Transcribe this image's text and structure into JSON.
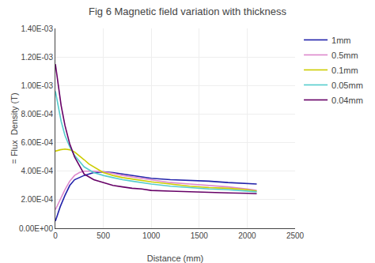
{
  "chart_data": {
    "type": "line",
    "title": "Fig 6 Magnetic field variation with thickness",
    "x_label": "Distance (mm)",
    "y_label": "= Flux  Density (T)",
    "xlim": [
      0,
      2500
    ],
    "ylim": [
      0,
      0.0014
    ],
    "xticks": [
      0,
      500,
      1000,
      1500,
      2000,
      2500
    ],
    "yticks": [
      {
        "value": 0.0,
        "label": "0.00E+00"
      },
      {
        "value": 0.0002,
        "label": "2.00E-04"
      },
      {
        "value": 0.0004,
        "label": "4.00E-04"
      },
      {
        "value": 0.0006,
        "label": "6.00E-04"
      },
      {
        "value": 0.0008,
        "label": "8.00E-04"
      },
      {
        "value": 0.001,
        "label": "1.00E-03"
      },
      {
        "value": 0.0012,
        "label": "1.20E-03"
      },
      {
        "value": 0.0014,
        "label": "1.40E-03"
      }
    ],
    "grid": true,
    "legend": "right",
    "series": [
      {
        "name": "1mm",
        "color": "#2222aa",
        "x": [
          0,
          50,
          100,
          150,
          200,
          300,
          400,
          500,
          600,
          700,
          800,
          900,
          1000,
          1200,
          1400,
          1600,
          1800,
          2000,
          2100
        ],
        "values": [
          5e-05,
          0.00015,
          0.00023,
          0.0003,
          0.00034,
          0.00037,
          0.00039,
          0.000395,
          0.00039,
          0.00038,
          0.00037,
          0.00036,
          0.00035,
          0.00034,
          0.000335,
          0.00033,
          0.00032,
          0.000315,
          0.00031
        ]
      },
      {
        "name": "0.5mm",
        "color": "#dd88cc",
        "x": [
          0,
          50,
          100,
          150,
          200,
          250,
          300,
          400,
          500,
          600,
          700,
          800,
          900,
          1000,
          1200,
          1400,
          1600,
          1800,
          2000,
          2100
        ],
        "values": [
          0.00013,
          0.0002,
          0.00027,
          0.00033,
          0.00037,
          0.00039,
          0.0004,
          0.0004,
          0.000395,
          0.000385,
          0.00037,
          0.00036,
          0.00035,
          0.00034,
          0.00032,
          0.00031,
          0.0003,
          0.00029,
          0.000275,
          0.000265
        ]
      },
      {
        "name": "0.1mm",
        "color": "#cccc00",
        "x": [
          0,
          50,
          100,
          150,
          200,
          250,
          300,
          350,
          400,
          500,
          600,
          700,
          800,
          900,
          1000,
          1200,
          1400,
          1600,
          1800,
          2000,
          2100
        ],
        "values": [
          0.00054,
          0.00055,
          0.000555,
          0.00055,
          0.000535,
          0.00051,
          0.00048,
          0.00045,
          0.00043,
          0.00039,
          0.00037,
          0.000355,
          0.000345,
          0.000335,
          0.000325,
          0.00031,
          0.000295,
          0.000285,
          0.00028,
          0.00027,
          0.00026
        ]
      },
      {
        "name": "0.05mm",
        "color": "#55cccc",
        "x": [
          0,
          30,
          60,
          100,
          150,
          200,
          300,
          400,
          500,
          600,
          700,
          800,
          900,
          1000,
          1200,
          1400,
          1600,
          1800,
          2000,
          2100
        ],
        "values": [
          0.00096,
          0.00085,
          0.00075,
          0.00065,
          0.00057,
          0.00051,
          0.00043,
          0.00039,
          0.00037,
          0.000355,
          0.00034,
          0.00033,
          0.00032,
          0.00031,
          0.000295,
          0.000285,
          0.000275,
          0.00027,
          0.00026,
          0.000255
        ]
      },
      {
        "name": "0.04mm",
        "color": "#660066",
        "x": [
          0,
          20,
          40,
          60,
          100,
          150,
          200,
          300,
          400,
          500,
          600,
          700,
          800,
          900,
          1000,
          1200,
          1400,
          1600,
          1800,
          2000,
          2100
        ],
        "values": [
          0.00115,
          0.00105,
          0.00095,
          0.00086,
          0.00072,
          0.00059,
          0.0005,
          0.00038,
          0.00034,
          0.00032,
          0.0003,
          0.00029,
          0.00028,
          0.000275,
          0.000265,
          0.00026,
          0.000255,
          0.00025,
          0.000248,
          0.000245,
          0.000242
        ]
      }
    ]
  }
}
